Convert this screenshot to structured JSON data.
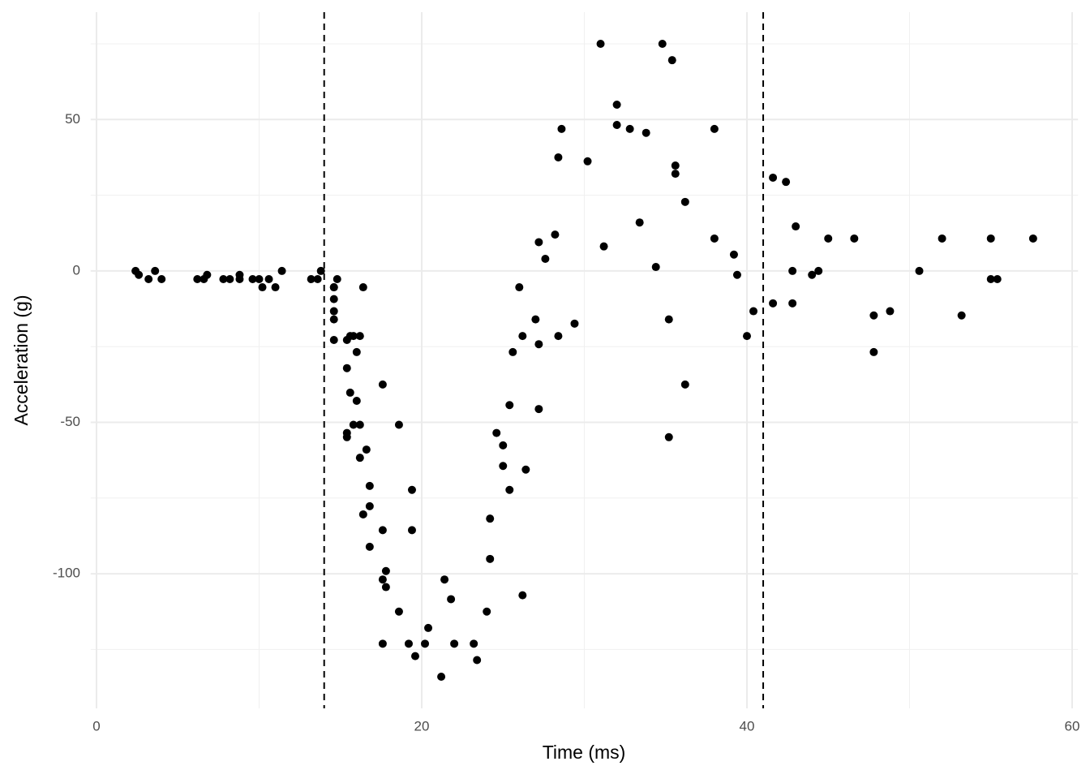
{
  "chart_data": {
    "type": "scatter",
    "x_label": "Time (ms)",
    "y_label": "Acceleration (g)",
    "x": [
      2.4,
      2.6,
      3.2,
      3.6,
      4.0,
      6.2,
      6.6,
      6.8,
      7.8,
      8.2,
      8.8,
      8.8,
      9.6,
      10.0,
      10.2,
      10.6,
      11.0,
      11.4,
      13.2,
      13.6,
      13.8,
      14.6,
      14.6,
      14.6,
      14.6,
      14.6,
      14.6,
      14.8,
      15.4,
      15.4,
      15.4,
      15.4,
      15.6,
      15.6,
      15.8,
      15.8,
      16.0,
      16.0,
      16.2,
      16.2,
      16.2,
      16.4,
      16.4,
      16.6,
      16.8,
      16.8,
      16.8,
      17.6,
      17.6,
      17.6,
      17.6,
      17.8,
      17.8,
      18.6,
      18.6,
      19.2,
      19.4,
      19.4,
      19.6,
      20.2,
      20.4,
      21.2,
      21.4,
      21.8,
      22.0,
      23.2,
      23.4,
      24.0,
      24.2,
      24.2,
      24.6,
      25.0,
      25.0,
      25.4,
      25.4,
      25.6,
      26.0,
      26.2,
      26.2,
      26.4,
      27.0,
      27.2,
      27.2,
      27.2,
      27.6,
      28.2,
      28.4,
      28.4,
      28.6,
      29.4,
      30.2,
      31.0,
      31.2,
      32.0,
      32.0,
      32.8,
      33.4,
      33.8,
      34.4,
      34.8,
      35.2,
      35.2,
      35.4,
      35.6,
      35.6,
      36.2,
      36.2,
      38.0,
      38.0,
      39.2,
      39.4,
      40.0,
      40.4,
      41.6,
      41.6,
      42.4,
      42.8,
      42.8,
      43.0,
      44.0,
      44.4,
      45.0,
      46.6,
      47.8,
      47.8,
      48.8,
      50.6,
      52.0,
      53.2,
      55.0,
      55.0,
      55.4,
      57.6
    ],
    "values": [
      0.0,
      -1.3,
      -2.7,
      0.0,
      -2.7,
      -2.7,
      -2.7,
      -1.3,
      -2.7,
      -2.7,
      -1.3,
      -2.7,
      -2.7,
      -2.7,
      -5.4,
      -2.7,
      -5.4,
      0.0,
      -2.7,
      -2.7,
      0.0,
      -13.3,
      -5.4,
      -5.4,
      -9.3,
      -16.0,
      -22.8,
      -2.7,
      -22.8,
      -32.1,
      -53.5,
      -54.9,
      -40.2,
      -21.5,
      -21.5,
      -50.8,
      -42.9,
      -26.8,
      -21.5,
      -50.8,
      -61.7,
      -5.4,
      -80.4,
      -59.0,
      -71.0,
      -91.1,
      -77.7,
      -37.5,
      -85.6,
      -123.1,
      -101.9,
      -99.1,
      -104.4,
      -112.5,
      -50.8,
      -123.1,
      -85.6,
      -72.3,
      -127.2,
      -123.1,
      -117.9,
      -134.0,
      -101.9,
      -108.4,
      -123.1,
      -123.1,
      -128.5,
      -112.5,
      -95.1,
      -81.8,
      -53.5,
      -64.4,
      -57.6,
      -72.3,
      -44.3,
      -26.8,
      -5.4,
      -107.1,
      -21.5,
      -65.6,
      -16.0,
      -45.6,
      -24.2,
      9.5,
      4.0,
      12.0,
      -21.5,
      37.5,
      46.9,
      -17.4,
      36.2,
      75.0,
      8.1,
      54.9,
      48.2,
      46.9,
      16.0,
      45.6,
      1.3,
      75.0,
      -16.0,
      -54.9,
      69.6,
      34.8,
      32.1,
      -37.5,
      22.8,
      46.9,
      10.7,
      5.4,
      -1.3,
      -21.5,
      -13.3,
      30.8,
      -10.7,
      29.4,
      0.0,
      -10.7,
      14.7,
      -1.3,
      0.0,
      10.7,
      10.7,
      -26.8,
      -14.7,
      -13.3,
      0.0,
      10.7,
      -14.7,
      -2.7,
      10.7,
      -2.7,
      10.7
    ],
    "color": "#000000",
    "xlim": [
      -0.36,
      60.36
    ],
    "ylim": [
      -144.45,
      85.45
    ],
    "xticks": [
      0,
      20,
      40,
      60
    ],
    "yticks": [
      -100,
      -50,
      0,
      50
    ],
    "x_minor_grid": [
      10,
      30,
      50
    ],
    "y_minor_grid": [
      -125,
      -75,
      -25,
      25,
      75
    ],
    "vlines": [
      14,
      41
    ],
    "grid": true
  }
}
